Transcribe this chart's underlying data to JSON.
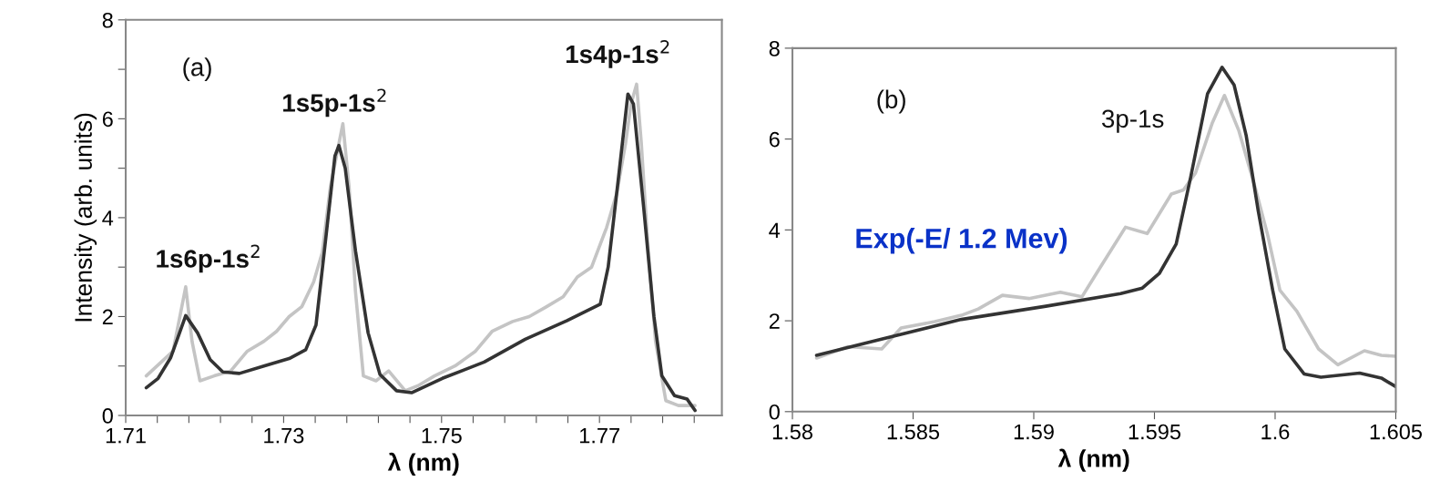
{
  "chart_data": [
    {
      "type": "line",
      "xlabel": "λ (nm)",
      "ylabel": "Intensity (arb. units)",
      "grid": false,
      "xlim": [
        1.71,
        1.7855
      ],
      "ylim": [
        0,
        8
      ],
      "xticks": [
        1.71,
        {
          "value": 1.714,
          "label": null
        },
        {
          "value": 1.718,
          "label": null
        },
        {
          "value": 1.722,
          "label": null
        },
        {
          "value": 1.726,
          "label": null
        },
        1.73,
        {
          "value": 1.734,
          "label": null
        },
        {
          "value": 1.738,
          "label": null
        },
        {
          "value": 1.742,
          "label": null
        },
        {
          "value": 1.746,
          "label": null
        },
        1.75,
        {
          "value": 1.754,
          "label": null
        },
        {
          "value": 1.758,
          "label": null
        },
        {
          "value": 1.762,
          "label": null
        },
        {
          "value": 1.766,
          "label": null
        },
        1.77,
        {
          "value": 1.774,
          "label": null
        },
        {
          "value": 1.778,
          "label": null
        },
        {
          "value": 1.782,
          "label": null
        }
      ],
      "yticks": [
        0,
        {
          "value": 1,
          "label": null
        },
        2,
        {
          "value": 3,
          "label": null
        },
        4,
        {
          "value": 5,
          "label": null
        },
        6,
        {
          "value": 7,
          "label": null
        },
        8
      ],
      "annotations": [
        "(a)",
        "1s6p-1s$^{2}$",
        "1s5p-1s$^{2}$",
        "1s4p-1s$^{2}$"
      ],
      "series": [
        {
          "color": "#c4c4c4",
          "x": [
            1.7126,
            1.716,
            1.7176,
            1.7184,
            1.7194,
            1.7212,
            1.7233,
            1.7254,
            1.7275,
            1.7291,
            1.7307,
            1.7323,
            1.7338,
            1.7349,
            1.7359,
            1.737,
            1.7375,
            1.7383,
            1.7391,
            1.7401,
            1.7417,
            1.7433,
            1.7454,
            1.747,
            1.7491,
            1.7517,
            1.7543,
            1.7564,
            1.759,
            1.7611,
            1.7633,
            1.7654,
            1.7672,
            1.769,
            1.7709,
            1.7722,
            1.7733,
            1.774,
            1.7747,
            1.7753,
            1.7761,
            1.7771,
            1.7784,
            1.78,
            1.7821
          ],
          "values": [
            0.8,
            1.3,
            2.6,
            1.5,
            0.7,
            0.8,
            0.9,
            1.3,
            1.5,
            1.7,
            2.0,
            2.2,
            2.7,
            3.3,
            4.6,
            5.5,
            5.9,
            4.6,
            2.5,
            0.8,
            0.7,
            0.9,
            0.5,
            0.6,
            0.8,
            1.0,
            1.3,
            1.7,
            1.9,
            2.0,
            2.2,
            2.4,
            2.8,
            3.0,
            3.8,
            4.5,
            5.5,
            6.3,
            6.7,
            5.5,
            3.5,
            1.5,
            0.3,
            0.2,
            0.2
          ]
        },
        {
          "color": "#333333",
          "x": [
            1.7126,
            1.7141,
            1.7157,
            1.7176,
            1.7191,
            1.7207,
            1.7223,
            1.7244,
            1.7275,
            1.7307,
            1.7328,
            1.7341,
            1.7354,
            1.7365,
            1.737,
            1.7378,
            1.7391,
            1.7407,
            1.7422,
            1.7443,
            1.7462,
            1.7501,
            1.7554,
            1.7606,
            1.7659,
            1.7701,
            1.7711,
            1.7724,
            1.7736,
            1.7743,
            1.7756,
            1.7769,
            1.7779,
            1.7795,
            1.7811,
            1.7821
          ],
          "values": [
            0.56,
            0.75,
            1.17,
            2.02,
            1.67,
            1.13,
            0.88,
            0.85,
            1.0,
            1.15,
            1.33,
            1.83,
            3.67,
            5.25,
            5.46,
            5.0,
            3.33,
            1.67,
            0.83,
            0.5,
            0.46,
            0.75,
            1.08,
            1.54,
            1.92,
            2.25,
            3.0,
            4.8,
            6.5,
            6.3,
            4.2,
            2.0,
            0.8,
            0.4,
            0.33,
            0.1
          ]
        }
      ]
    },
    {
      "type": "line",
      "xlabel": "λ (nm)",
      "grid": false,
      "xlim": [
        1.58,
        1.605
      ],
      "ylim": [
        0,
        8
      ],
      "xticks": [
        1.58,
        1.585,
        1.59,
        1.595,
        1.6,
        1.605
      ],
      "yticks": [
        0,
        2,
        4,
        6,
        8
      ],
      "annotations": [
        "(b)",
        "3p-1s",
        "Exp(-E/ 1.2 Mev)"
      ],
      "series": [
        {
          "color": "#c4c4c4",
          "x": [
            1.581,
            1.5823,
            1.5837,
            1.5845,
            1.5859,
            1.587,
            1.5877,
            1.5887,
            1.5898,
            1.5911,
            1.592,
            1.5927,
            1.5938,
            1.5947,
            1.5957,
            1.5962,
            1.5967,
            1.5974,
            1.5979,
            1.5985,
            1.5992,
            1.5997,
            1.6002,
            1.6009,
            1.6018,
            1.6026,
            1.6037,
            1.6044,
            1.605
          ],
          "values": [
            1.18,
            1.43,
            1.38,
            1.84,
            1.98,
            2.12,
            2.26,
            2.56,
            2.49,
            2.63,
            2.53,
            3.13,
            4.06,
            3.92,
            4.79,
            4.88,
            5.25,
            6.36,
            6.96,
            6.18,
            4.88,
            3.87,
            2.67,
            2.21,
            1.38,
            1.03,
            1.34,
            1.24,
            1.22
          ]
        },
        {
          "color": "#333333",
          "x": [
            1.581,
            1.5835,
            1.587,
            1.5905,
            1.5936,
            1.5945,
            1.5952,
            1.5959,
            1.5965,
            1.5972,
            1.5978,
            1.5983,
            1.5988,
            1.5993,
            1.5999,
            1.6004,
            1.6012,
            1.6019,
            1.6035,
            1.6044,
            1.605
          ],
          "values": [
            1.24,
            1.57,
            2.03,
            2.32,
            2.6,
            2.72,
            3.04,
            3.69,
            5.16,
            7.0,
            7.58,
            7.19,
            6.08,
            4.42,
            2.67,
            1.38,
            0.83,
            0.76,
            0.85,
            0.74,
            0.55
          ]
        }
      ]
    }
  ]
}
